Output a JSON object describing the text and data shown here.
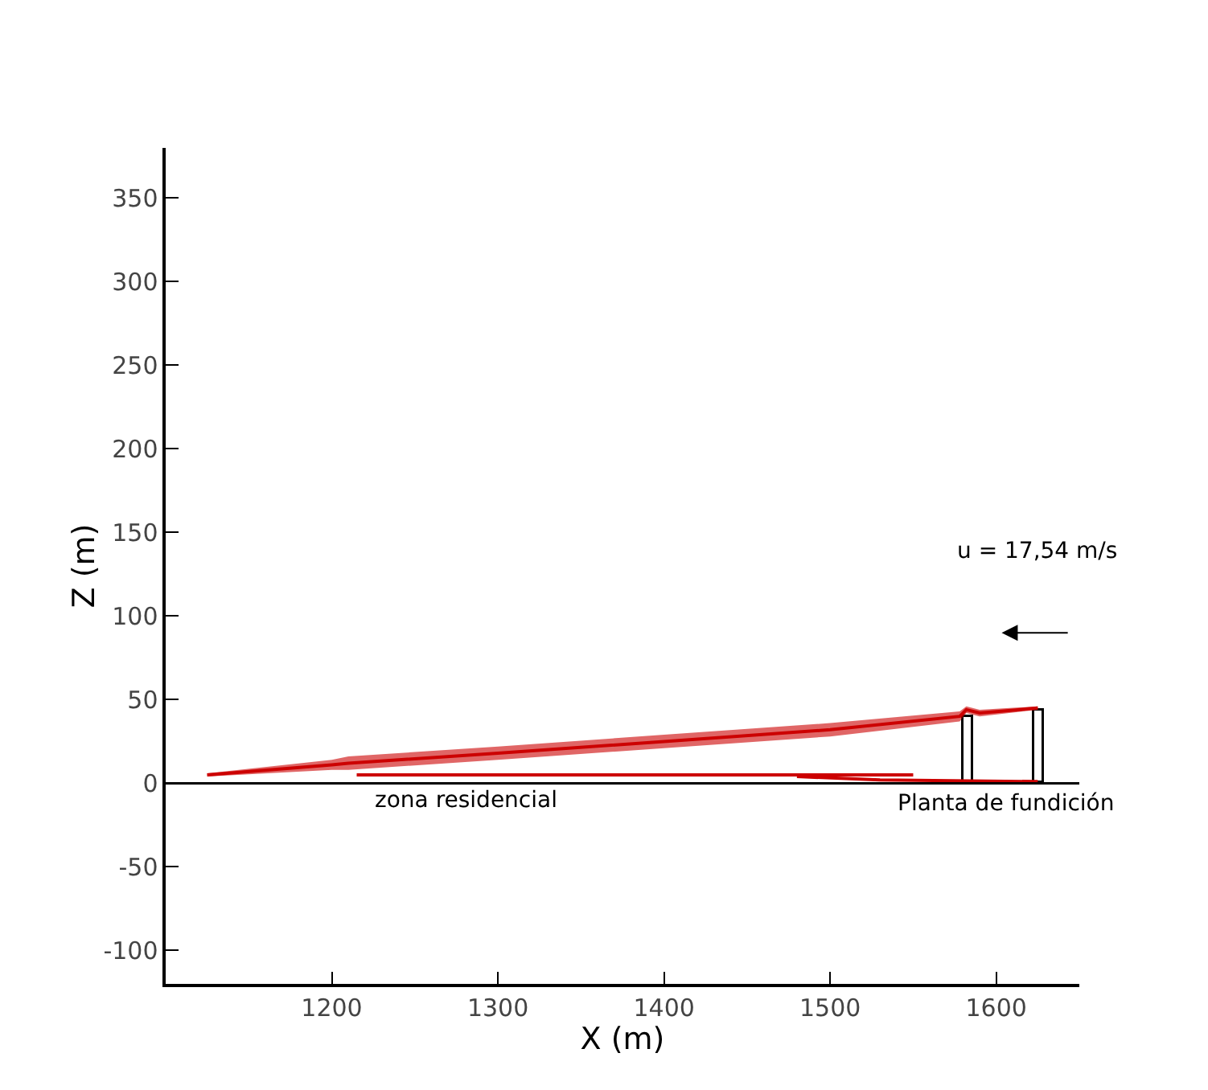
{
  "chart_data": {
    "type": "line",
    "xlabel": "X (m)",
    "ylabel": "Z (m)",
    "xlim": [
      1100,
      1650
    ],
    "ylim": [
      -120,
      380
    ],
    "xticks": [
      1200,
      1300,
      1400,
      1500,
      1600
    ],
    "yticks": [
      -100,
      -50,
      0,
      50,
      100,
      150,
      200,
      250,
      300,
      350
    ],
    "marker": "none",
    "line_style": "solid",
    "series": [
      {
        "color": "#cc0000",
        "x": [
          1125,
          1200,
          1210,
          1300,
          1400,
          1500,
          1578,
          1582,
          1590,
          1625
        ],
        "values": [
          5,
          11,
          12,
          18,
          25,
          32,
          40,
          44,
          42,
          45
        ],
        "lower": [
          4,
          8,
          8,
          14,
          21,
          28,
          37,
          42,
          40,
          44
        ],
        "upper": [
          6,
          14,
          16,
          22,
          29,
          36,
          43,
          46,
          44,
          46
        ]
      },
      {
        "color": "#cc0000",
        "x": [
          1215,
          1550
        ],
        "values": [
          5,
          5
        ]
      },
      {
        "color": "#cc0000",
        "x": [
          1480,
          1530,
          1625
        ],
        "values": [
          4,
          2,
          1
        ]
      },
      {
        "type": "bar",
        "color": "#ffffff",
        "x": [
          1583.5,
          1625.5
        ],
        "values": [
          40,
          43
        ]
      }
    ],
    "ref_lines": [
      {
        "axis": "y",
        "value": 0,
        "color": "#000000"
      }
    ],
    "annotations": [
      "zona residencial",
      "Planta de fundición",
      "u = 17,54 m/s"
    ]
  }
}
